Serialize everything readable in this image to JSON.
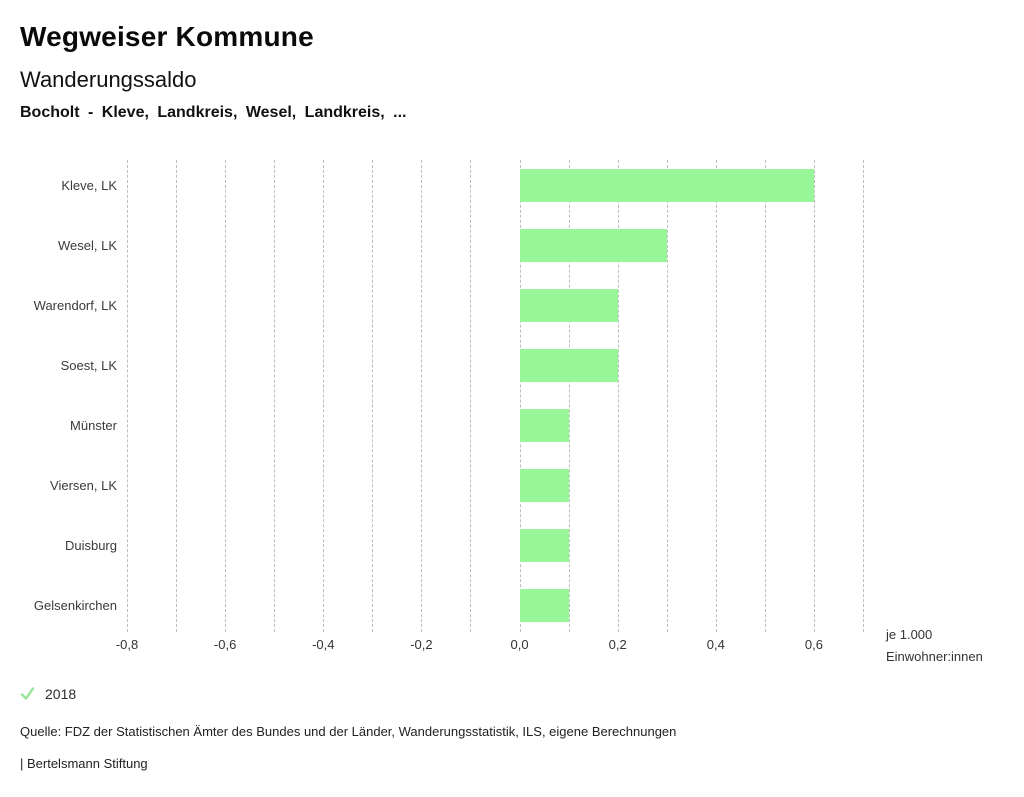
{
  "header": {
    "title": "Wegweiser Kommune",
    "subtitle": "Wanderungssaldo",
    "comparison": "Bocholt - Kleve, Landkreis, Wesel, Landkreis, ..."
  },
  "chart_data": {
    "type": "bar",
    "orientation": "horizontal",
    "title": "Wanderungssaldo",
    "categories": [
      "Kleve, LK",
      "Wesel, LK",
      "Warendorf, LK",
      "Soest, LK",
      "Münster",
      "Viersen, LK",
      "Duisburg",
      "Gelsenkirchen"
    ],
    "series": [
      {
        "name": "2018",
        "values": [
          0.6,
          0.3,
          0.2,
          0.2,
          0.1,
          0.1,
          0.1,
          0.1
        ]
      }
    ],
    "xlim": [
      -0.8,
      0.7
    ],
    "gridline_step": 0.1,
    "grid": true,
    "ticks": [
      {
        "value": -0.8,
        "label": "-0,8"
      },
      {
        "value": -0.6,
        "label": "-0,6"
      },
      {
        "value": -0.4,
        "label": "-0,4"
      },
      {
        "value": -0.2,
        "label": "-0,2"
      },
      {
        "value": 0.0,
        "label": "0,0"
      },
      {
        "value": 0.2,
        "label": "0,2"
      },
      {
        "value": 0.4,
        "label": "0,4"
      },
      {
        "value": 0.6,
        "label": "0,6"
      }
    ],
    "unit_label_lines": [
      "je 1.000",
      "Einwohner:innen"
    ],
    "xlabel": "je 1.000 Einwohner:innen",
    "ylabel": "",
    "legend_position": "bottom-left"
  },
  "legend": {
    "year": "2018",
    "check_icon": "checkmark"
  },
  "footer": {
    "source": "Quelle: FDZ der Statistischen Ämter des Bundes und der Länder, Wanderungsstatistik, ILS, eigene Berechnungen",
    "branding": "| Bertelsmann Stiftung"
  },
  "colors": {
    "bar": "#98f598",
    "check": "#9be49b",
    "grid": "#bdbdbd",
    "text": "#333333"
  }
}
